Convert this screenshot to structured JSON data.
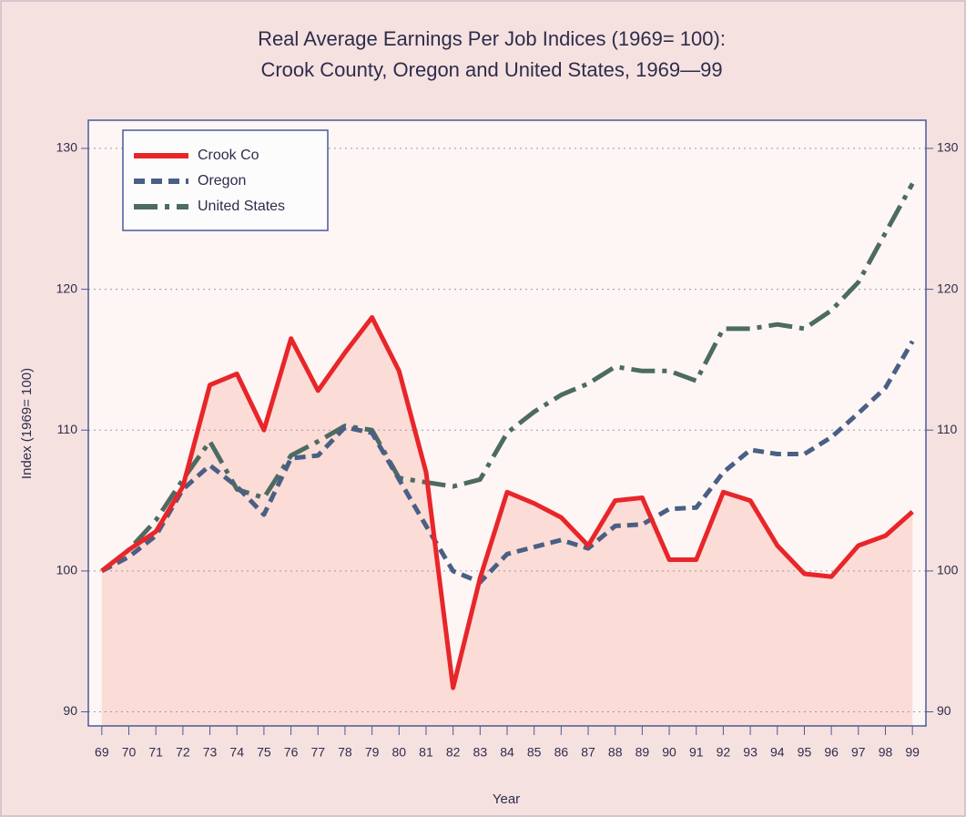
{
  "chart_data": {
    "type": "line",
    "title": "Real Average Earnings Per Job Indices (1969= 100):",
    "subtitle": "Crook County, Oregon and United States, 1969—99",
    "xlabel": "Year",
    "ylabel": "Index (1969= 100)",
    "x": [
      69,
      70,
      71,
      72,
      73,
      74,
      75,
      76,
      77,
      78,
      79,
      80,
      81,
      82,
      83,
      84,
      85,
      86,
      87,
      88,
      89,
      90,
      91,
      92,
      93,
      94,
      95,
      96,
      97,
      98,
      99
    ],
    "xlim": [
      68.5,
      99.5
    ],
    "xticks": [
      69,
      70,
      71,
      72,
      73,
      74,
      75,
      76,
      77,
      78,
      79,
      80,
      81,
      82,
      83,
      84,
      85,
      86,
      87,
      88,
      89,
      90,
      91,
      92,
      93,
      94,
      95,
      96,
      97,
      98,
      99
    ],
    "ylim": [
      89,
      132
    ],
    "yticks": [
      90,
      100,
      110,
      120,
      130
    ],
    "grid": true,
    "legend": "upper left",
    "series": [
      {
        "name": "Crook Co",
        "color": "#e8262a",
        "fill": "#fbdcd6",
        "values": [
          100,
          101.5,
          102.8,
          106,
          113.2,
          114,
          110,
          116.5,
          112.8,
          115.5,
          118,
          114.2,
          107,
          91.7,
          99.5,
          105.6,
          104.8,
          103.8,
          101.8,
          105,
          105.2,
          100.8,
          100.8,
          105.6,
          105,
          101.8,
          99.8,
          99.6,
          101.8,
          102.5,
          104.2
        ]
      },
      {
        "name": "Oregon",
        "color": "#4a5f86",
        "values": [
          100,
          101,
          102.5,
          105.8,
          107.5,
          106,
          104,
          108,
          108.2,
          110.2,
          109.8,
          106.5,
          103.2,
          100,
          99.2,
          101.2,
          101.7,
          102.2,
          101.6,
          103.2,
          103.3,
          104.4,
          104.5,
          107,
          108.6,
          108.3,
          108.3,
          109.5,
          111.2,
          113,
          116.3
        ]
      },
      {
        "name": "United States",
        "color": "#4d6b60",
        "values": [
          100,
          101.5,
          103.6,
          106.5,
          109.2,
          105.8,
          105.2,
          108.2,
          109.2,
          110.3,
          110,
          106.6,
          106.3,
          106,
          106.5,
          109.8,
          111.3,
          112.5,
          113.3,
          114.5,
          114.2,
          114.2,
          113.5,
          117.2,
          117.2,
          117.5,
          117.2,
          118.5,
          120.5,
          124,
          127.5
        ]
      }
    ]
  }
}
